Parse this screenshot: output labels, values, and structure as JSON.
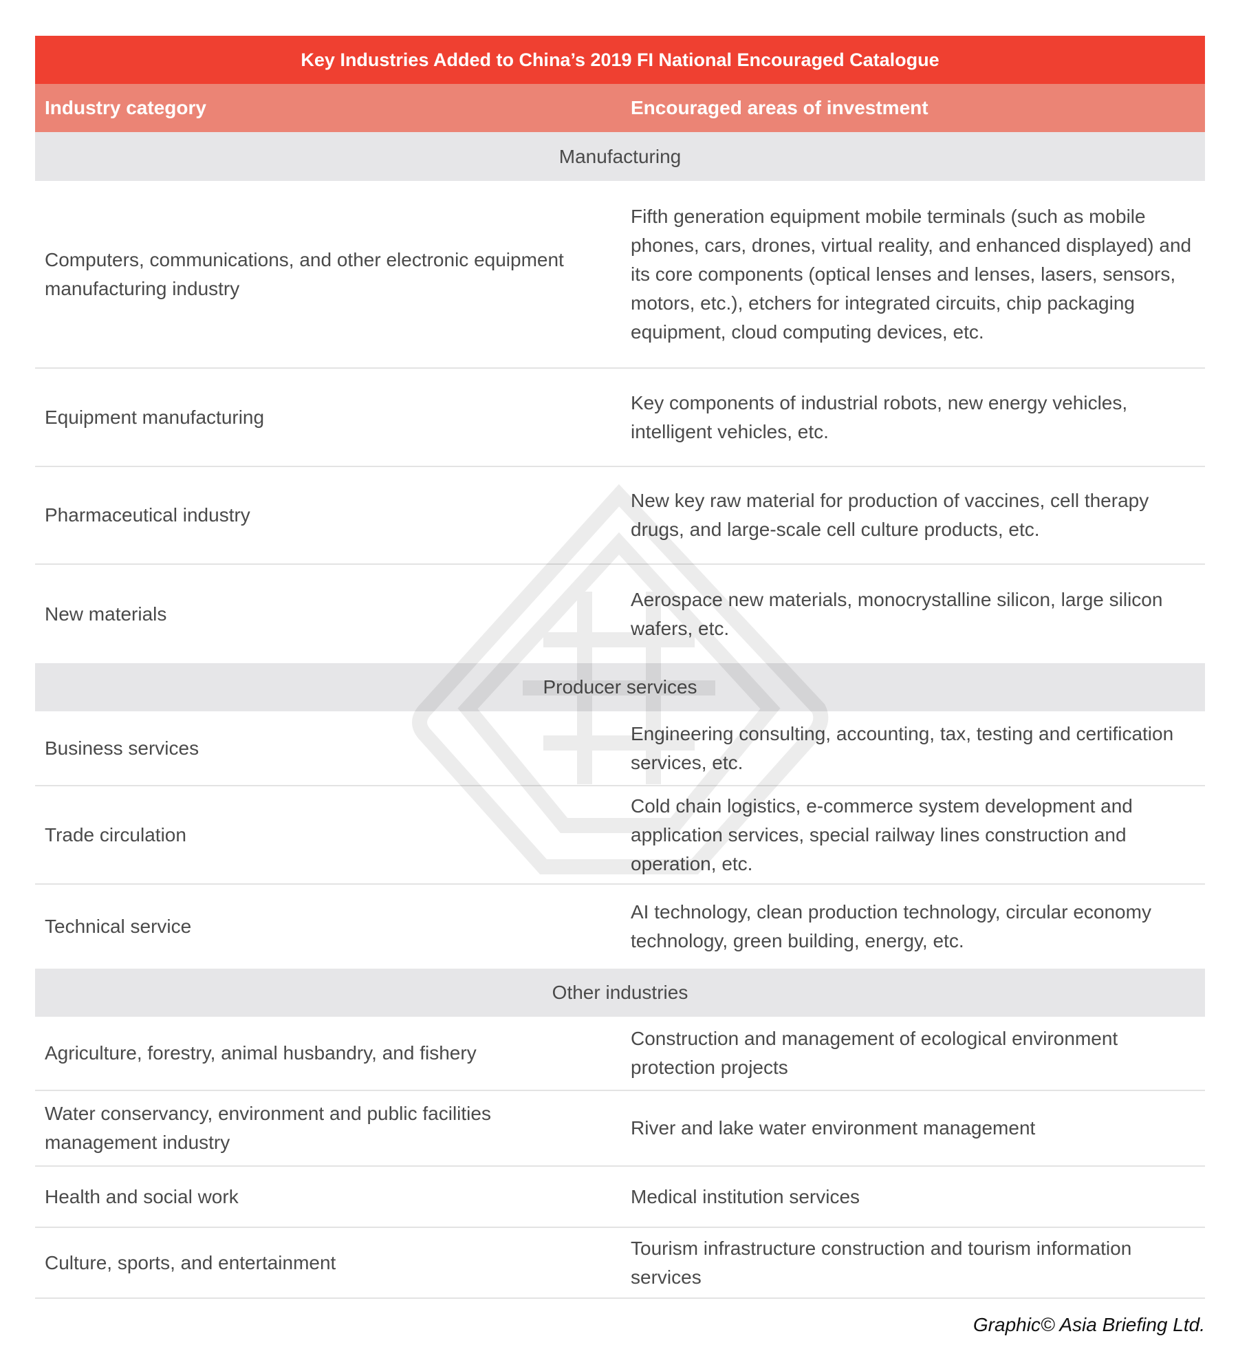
{
  "title": "Key Industries Added to China’s 2019 FI National Encouraged Catalogue",
  "headers": {
    "category": "Industry category",
    "areas": "Encouraged areas of investment"
  },
  "colors": {
    "title_bg": "#ef4031",
    "header_bg": "#eb8475",
    "section_bg": "#e6e6e8"
  },
  "sections": [
    {
      "name": "Manufacturing",
      "rows": [
        {
          "category": "Computers, communications, and other electronic equipment manufacturing industry",
          "areas": "Fifth generation equipment mobile terminals (such as mobile phones, cars, drones, virtual reality, and enhanced displayed) and its core components (optical lenses and lenses, lasers, sensors, motors, etc.), etchers for integrated circuits, chip packaging equipment, cloud computing devices, etc."
        },
        {
          "category": "Equipment manufacturing",
          "areas": "Key components of industrial robots, new energy vehicles, intelligent vehicles, etc."
        },
        {
          "category": "Pharmaceutical industry",
          "areas": "New key raw material for production of vaccines, cell therapy drugs, and large-scale cell culture products, etc."
        },
        {
          "category": "New materials",
          "areas": "Aerospace new materials, monocrystalline silicon, large silicon wafers, etc."
        }
      ]
    },
    {
      "name": "Producer services",
      "rows": [
        {
          "category": "Business services",
          "areas": "Engineering consulting, accounting, tax, testing and certification services, etc."
        },
        {
          "category": "Trade circulation",
          "areas": "Cold chain logistics, e-commerce system development and application services, special railway lines construction and operation, etc."
        },
        {
          "category": "Technical service",
          "areas": "AI technology, clean production technology, circular economy technology, green building, energy, etc."
        }
      ]
    },
    {
      "name": "Other industries",
      "rows": [
        {
          "category": "Agriculture, forestry, animal husbandry, and fishery",
          "areas": "Construction and management of ecological environment protection projects"
        },
        {
          "category": "Water conservancy, environment and public facilities management industry",
          "areas": "River and lake water environment management"
        },
        {
          "category": "Health and social work",
          "areas": "Medical institution services"
        },
        {
          "category": "Culture, sports, and entertainment",
          "areas": "Tourism infrastructure construction and tourism information services"
        }
      ]
    }
  ],
  "footer": "Graphic© Asia Briefing Ltd."
}
